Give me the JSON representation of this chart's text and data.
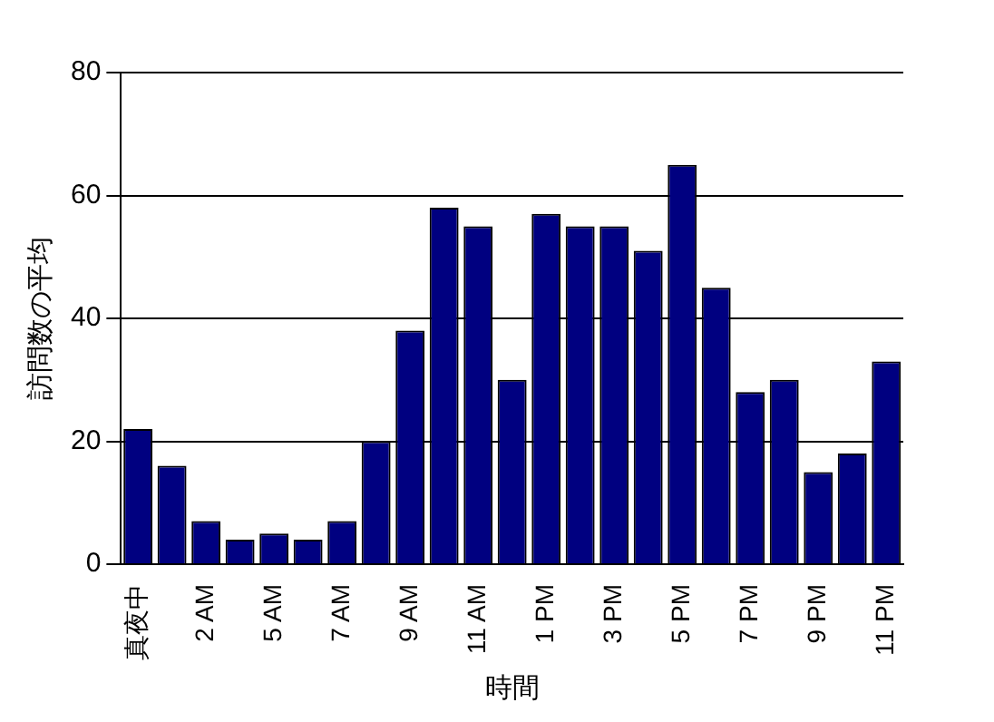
{
  "chart_data": {
    "type": "bar",
    "xlabel": "時間",
    "ylabel": "訪問数の平均",
    "categories": [
      "真夜中",
      null,
      "2 AM",
      null,
      "5 AM",
      null,
      "7 AM",
      null,
      "9 AM",
      null,
      "11 AM",
      null,
      "1 PM",
      null,
      "3 PM",
      null,
      "5 PM",
      null,
      "7 PM",
      null,
      "9 PM",
      null,
      "11 PM"
    ],
    "values": [
      22,
      16,
      7,
      4,
      5,
      4,
      7,
      20,
      38,
      58,
      55,
      30,
      57,
      55,
      55,
      51,
      65,
      45,
      28,
      30,
      15,
      18,
      33
    ],
    "color": "#000080",
    "ylim": [
      0,
      80
    ],
    "yticks": [
      0,
      20,
      40,
      60,
      80
    ],
    "grid": "y",
    "legend": false
  }
}
